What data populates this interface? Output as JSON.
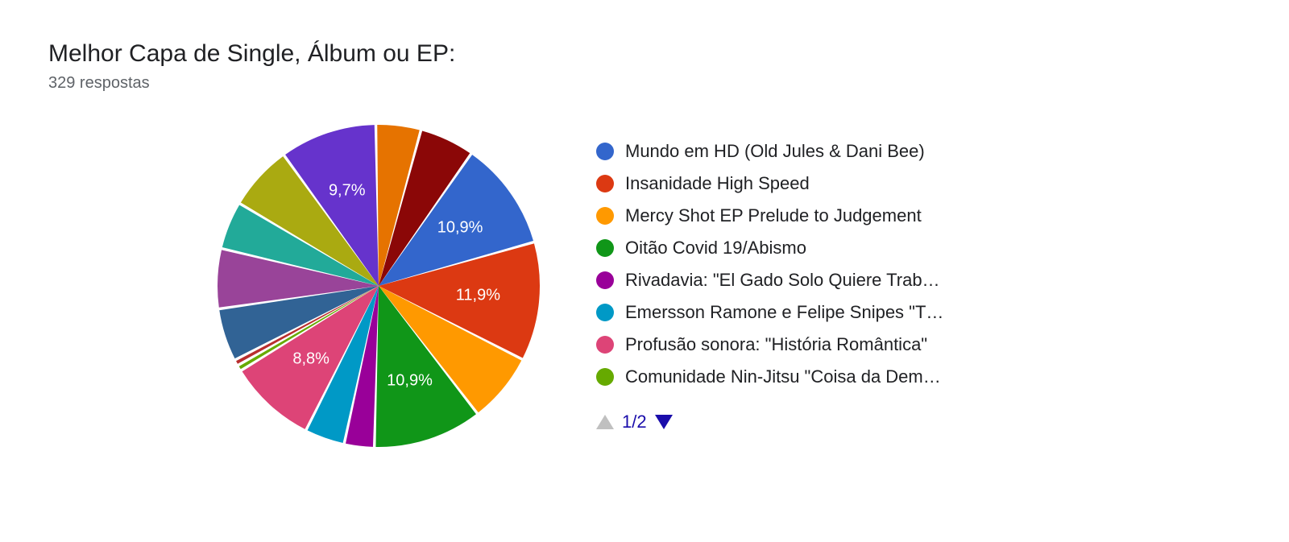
{
  "title": "Melhor Capa de Single, Álbum ou EP:",
  "subtitle": "329 respostas",
  "chart": {
    "type": "pie",
    "background_color": "#ffffff",
    "start_angle_deg": 35,
    "slice_gap_deg": 1.0,
    "label_fontsize": 20,
    "label_color": "#ffffff",
    "slices": [
      {
        "value": 10.9,
        "color": "#3366cc",
        "label": "10,9%",
        "show_label": true
      },
      {
        "value": 11.9,
        "color": "#dc3912",
        "label": "11,9%",
        "show_label": true
      },
      {
        "value": 7.0,
        "color": "#ff9900",
        "label": "",
        "show_label": false
      },
      {
        "value": 10.9,
        "color": "#109618",
        "label": "10,9%",
        "show_label": true
      },
      {
        "value": 3.0,
        "color": "#990099",
        "label": "",
        "show_label": false
      },
      {
        "value": 4.0,
        "color": "#0099c6",
        "label": "",
        "show_label": false
      },
      {
        "value": 8.8,
        "color": "#dd4477",
        "label": "8,8%",
        "show_label": true
      },
      {
        "value": 0.6,
        "color": "#66aa00",
        "label": "",
        "show_label": false
      },
      {
        "value": 0.6,
        "color": "#b82e2e",
        "label": "",
        "show_label": false
      },
      {
        "value": 5.3,
        "color": "#316395",
        "label": "",
        "show_label": false
      },
      {
        "value": 6.0,
        "color": "#994499",
        "label": "",
        "show_label": false
      },
      {
        "value": 4.8,
        "color": "#22aa99",
        "label": "",
        "show_label": false
      },
      {
        "value": 6.5,
        "color": "#aaaa11",
        "label": "",
        "show_label": false
      },
      {
        "value": 9.7,
        "color": "#6633cc",
        "label": "9,7%",
        "show_label": true
      },
      {
        "value": 4.5,
        "color": "#e67300",
        "label": "",
        "show_label": false
      },
      {
        "value": 5.5,
        "color": "#8b0707",
        "label": "",
        "show_label": false
      }
    ]
  },
  "legend": {
    "items": [
      {
        "color": "#3366cc",
        "label": "Mundo em HD (Old Jules & Dani Bee)"
      },
      {
        "color": "#dc3912",
        "label": "Insanidade High Speed"
      },
      {
        "color": "#ff9900",
        "label": "Mercy Shot EP Prelude to Judgement"
      },
      {
        "color": "#109618",
        "label": "Oitão Covid 19/Abismo"
      },
      {
        "color": "#990099",
        "label": "Rivadavia: \"El Gado Solo Quiere Trab…"
      },
      {
        "color": "#0099c6",
        "label": "Emersson Ramone e Felipe Snipes \"T…"
      },
      {
        "color": "#dd4477",
        "label": "Profusão sonora: \"História Romântica\""
      },
      {
        "color": "#66aa00",
        "label": "Comunidade Nin-Jitsu \"Coisa da Dem…"
      }
    ]
  },
  "pager": {
    "text": "1/2",
    "up_color": "#c0c0c0",
    "down_color": "#1a0dab"
  }
}
